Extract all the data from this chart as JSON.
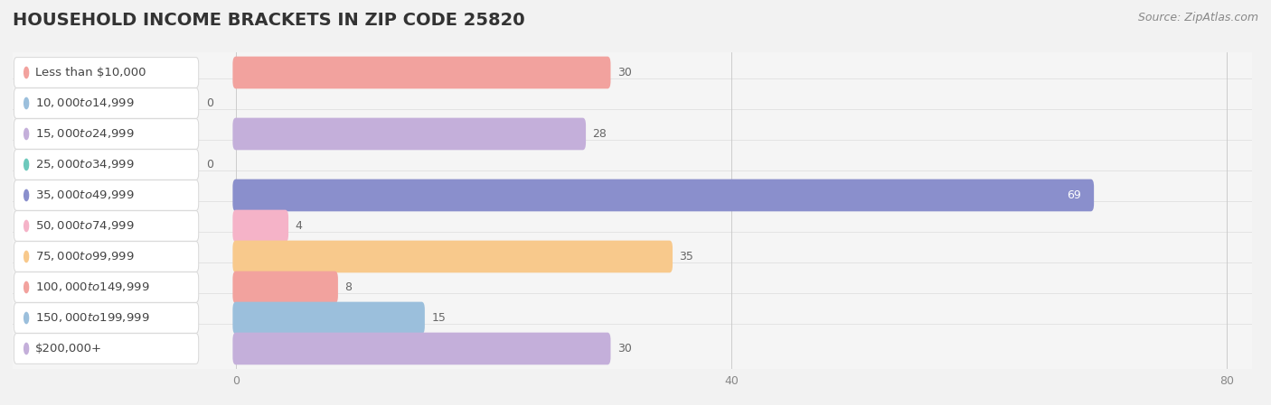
{
  "title": "HOUSEHOLD INCOME BRACKETS IN ZIP CODE 25820",
  "source": "Source: ZipAtlas.com",
  "categories": [
    "Less than $10,000",
    "$10,000 to $14,999",
    "$15,000 to $24,999",
    "$25,000 to $34,999",
    "$35,000 to $49,999",
    "$50,000 to $74,999",
    "$75,000 to $99,999",
    "$100,000 to $149,999",
    "$150,000 to $199,999",
    "$200,000+"
  ],
  "values": [
    30,
    0,
    28,
    0,
    69,
    4,
    35,
    8,
    15,
    30
  ],
  "bar_colors": [
    "#F2A29E",
    "#9BBFDC",
    "#C4AFDA",
    "#6DC9BC",
    "#8A8FCC",
    "#F5B3C8",
    "#F8C98C",
    "#F2A29E",
    "#9BBFDC",
    "#C4AFDA"
  ],
  "xlim_data": 80,
  "xticks": [
    0,
    40,
    80
  ],
  "bg_color": "#f2f2f2",
  "row_bg_even": "#f9f9f9",
  "row_bg_odd": "#efefef",
  "title_fontsize": 14,
  "source_fontsize": 9,
  "label_fontsize": 9.5,
  "value_fontsize": 9
}
